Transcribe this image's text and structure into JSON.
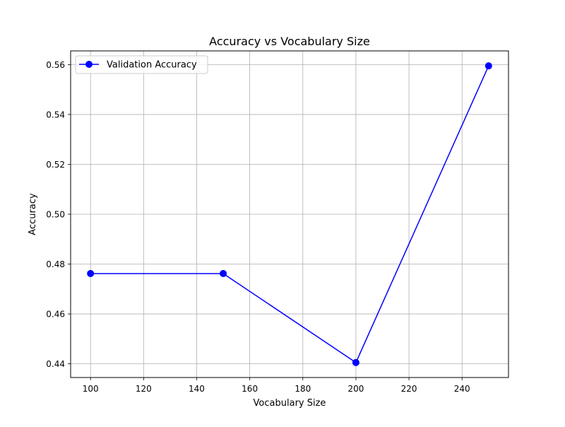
{
  "chart_data": {
    "type": "line",
    "title": "Accuracy vs Vocabulary Size",
    "xlabel": "Vocabulary Size",
    "ylabel": "Accuracy",
    "xlim": [
      92.5,
      257.5
    ],
    "ylim": [
      0.4345,
      0.5655
    ],
    "x_ticks": [
      100,
      120,
      140,
      160,
      180,
      200,
      220,
      240
    ],
    "y_ticks": [
      0.44,
      0.46,
      0.48,
      0.5,
      0.52,
      0.54,
      0.56
    ],
    "x_tick_labels": [
      "100",
      "120",
      "140",
      "160",
      "180",
      "200",
      "220",
      "240"
    ],
    "y_tick_labels": [
      "0.44",
      "0.46",
      "0.48",
      "0.50",
      "0.52",
      "0.54",
      "0.56"
    ],
    "grid": true,
    "legend_position": "top-left",
    "series": [
      {
        "name": "Validation Accuracy",
        "color": "#0000ff",
        "marker": "circle",
        "x": [
          100,
          150,
          200,
          250
        ],
        "y": [
          0.4762,
          0.4762,
          0.4405,
          0.5595
        ]
      }
    ]
  }
}
